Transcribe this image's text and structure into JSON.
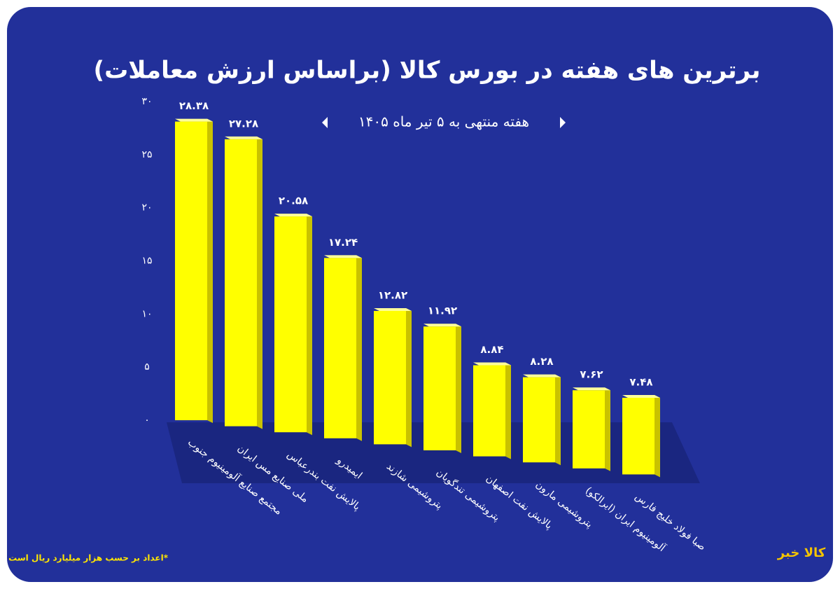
{
  "chart_data": {
    "type": "bar3d",
    "title": "برترین های هفته در بورس کالا (براساس ارزش معاملات)",
    "subtitle": "هفته منتهی به ۵ تیر ماه ۱۴۰۵",
    "note": "*اعداد بر حسب هزار میلیارد ریال است",
    "logo": "کالا خبر",
    "categories": [
      "مجتمع صنایع آلومینیوم جنوب",
      "ملی صنایع مس ایران",
      "پالایش نفت بندرعباس",
      "ایمیدرو",
      "پتروشیمی شازند",
      "پتروشیمی تندگویان",
      "پالایش نفت اصفهان",
      "پتروشیمی مارون",
      "آلومینیوم ایران (ایرالکو)",
      "صبا فولاد خلیج فارس"
    ],
    "values": [
      28.38,
      27.28,
      20.58,
      17.24,
      12.82,
      11.92,
      8.84,
      8.28,
      7.62,
      7.48
    ],
    "value_labels": [
      "۲۸.۳۸",
      "۲۷.۲۸",
      "۲۰.۵۸",
      "۱۷.۲۴",
      "۱۲.۸۲",
      "۱۱.۹۲",
      "۸.۸۴",
      "۸.۲۸",
      "۷.۶۲",
      "۷.۴۸"
    ],
    "color": "#ffff00",
    "ylim": [
      0,
      30
    ],
    "yticks": [
      {
        "value": 0,
        "label": "۰"
      },
      {
        "value": 5,
        "label": "۵"
      },
      {
        "value": 10,
        "label": "۱۰"
      },
      {
        "value": 15,
        "label": "۱۵"
      },
      {
        "value": 20,
        "label": "۲۰"
      },
      {
        "value": 25,
        "label": "۲۵"
      },
      {
        "value": 30,
        "label": "۳۰"
      }
    ],
    "grid": false
  }
}
